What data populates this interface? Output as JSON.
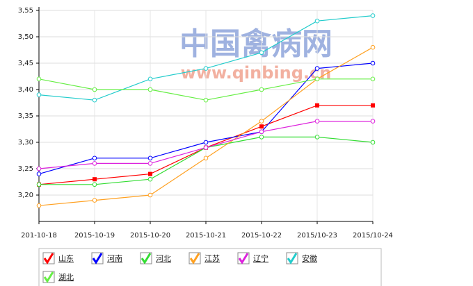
{
  "chart_data": {
    "type": "line",
    "watermark": {
      "title": "中国禽病网",
      "url": "www.qinbing.cn"
    },
    "categories": [
      "201-10-18",
      "2015-10-19",
      "2015-10-20",
      "2015-10-21",
      "2015-10-22",
      "2015/10-23",
      "2015/10-24"
    ],
    "ylim": [
      3.15,
      3.55
    ],
    "yticks": [
      {
        "value": 3.2,
        "label": "3,20"
      },
      {
        "value": 3.25,
        "label": "3,25"
      },
      {
        "value": 3.3,
        "label": "3,30"
      },
      {
        "value": 3.35,
        "label": "3,35"
      },
      {
        "value": 3.4,
        "label": "3,40"
      },
      {
        "value": 3.45,
        "label": "3,45"
      },
      {
        "value": 3.5,
        "label": "3,50"
      },
      {
        "value": 3.55,
        "label": "3,55"
      }
    ],
    "grid": true,
    "series": [
      {
        "name": "山东",
        "color": "#ff0000",
        "marker": "square",
        "values": [
          3.22,
          3.23,
          3.24,
          3.29,
          3.33,
          3.37,
          3.37
        ]
      },
      {
        "name": "河南",
        "color": "#0000ff",
        "marker": "circle",
        "values": [
          3.24,
          3.27,
          3.27,
          3.3,
          3.32,
          3.44,
          3.45
        ]
      },
      {
        "name": "河北",
        "color": "#33dd33",
        "marker": "circle",
        "values": [
          3.22,
          3.22,
          3.23,
          3.29,
          3.31,
          3.31,
          3.3
        ]
      },
      {
        "name": "江苏",
        "color": "#ffa020",
        "marker": "circle",
        "values": [
          3.18,
          3.19,
          3.2,
          3.27,
          3.34,
          3.42,
          3.48
        ]
      },
      {
        "name": "辽宁",
        "color": "#dd22dd",
        "marker": "circle",
        "values": [
          3.25,
          3.26,
          3.26,
          3.29,
          3.32,
          3.34,
          3.34
        ]
      },
      {
        "name": "安徽",
        "color": "#22cccc",
        "marker": "circle",
        "values": [
          3.39,
          3.38,
          3.42,
          3.44,
          3.47,
          3.53,
          3.54
        ]
      },
      {
        "name": "湖北",
        "color": "#66ee44",
        "marker": "circle",
        "values": [
          3.42,
          3.4,
          3.4,
          3.38,
          3.4,
          3.42,
          3.42
        ]
      }
    ]
  }
}
